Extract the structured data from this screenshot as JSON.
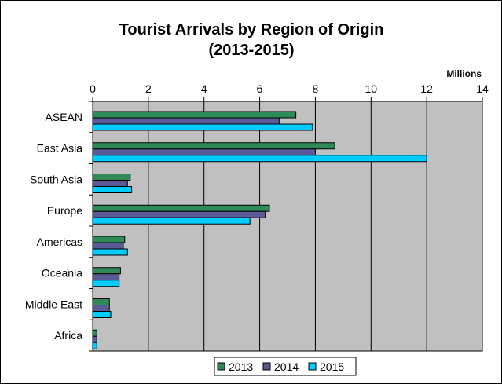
{
  "chart_data": {
    "type": "bar",
    "orientation": "horizontal",
    "title": "Tourist Arrivals by Region of Origin",
    "subtitle": "(2013-2015)",
    "xlabel": "Millions",
    "xlim": [
      0,
      14
    ],
    "xticks": [
      0,
      2,
      4,
      6,
      8,
      10,
      12,
      14
    ],
    "xtick_labels": [
      "0",
      "2",
      "4",
      "6",
      "8",
      "10",
      "12",
      "14"
    ],
    "categories": [
      "ASEAN",
      "East Asia",
      "South Asia",
      "Europe",
      "Americas",
      "Oceania",
      "Middle East",
      "Africa"
    ],
    "series": [
      {
        "name": "2013",
        "color": "#2E8B57",
        "values": [
          7.3,
          8.7,
          1.35,
          6.35,
          1.15,
          1.0,
          0.6,
          0.15
        ]
      },
      {
        "name": "2014",
        "color": "#5A5A96",
        "values": [
          6.7,
          8.0,
          1.25,
          6.2,
          1.1,
          0.95,
          0.6,
          0.15
        ]
      },
      {
        "name": "2015",
        "color": "#00CCFF",
        "values": [
          7.9,
          12.0,
          1.4,
          5.65,
          1.25,
          0.95,
          0.65,
          0.15
        ]
      }
    ],
    "grid": true,
    "plot_background": "#C0C0C0",
    "legend_position": "bottom"
  }
}
